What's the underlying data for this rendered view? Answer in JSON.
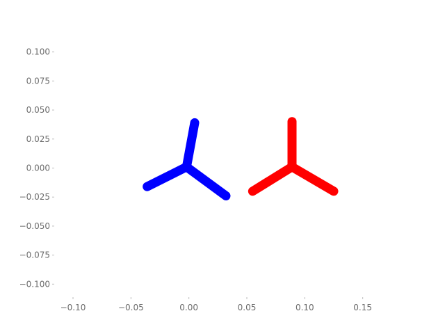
{
  "chart_data": {
    "type": "line",
    "title": "",
    "xlabel": "",
    "ylabel": "",
    "xlim": [
      -0.115,
      0.185
    ],
    "ylim": [
      -0.11,
      0.11
    ],
    "grid": false,
    "x_ticks": [
      -0.1,
      -0.05,
      0.0,
      0.05,
      0.1,
      0.15
    ],
    "x_tick_labels": [
      "−0.10",
      "−0.05",
      "0.00",
      "0.05",
      "0.10",
      "0.15"
    ],
    "y_ticks": [
      0.1,
      0.075,
      0.05,
      0.025,
      0.0,
      -0.025,
      -0.05,
      -0.075,
      -0.1
    ],
    "y_tick_labels": [
      "0.100",
      "0.075",
      "0.050",
      "0.025",
      "0.000",
      "−0.025",
      "−0.050",
      "−0.075",
      "−0.100"
    ],
    "series": [
      {
        "color": "#0000ff",
        "segments": [
          [
            [
              -0.002,
              0.001
            ],
            [
              0.005,
              0.039
            ]
          ],
          [
            [
              -0.002,
              0.001
            ],
            [
              -0.036,
              -0.016
            ]
          ],
          [
            [
              -0.002,
              0.001
            ],
            [
              0.032,
              -0.024
            ]
          ]
        ]
      },
      {
        "color": "#ff0000",
        "segments": [
          [
            [
              0.089,
              0.001
            ],
            [
              0.089,
              0.04
            ]
          ],
          [
            [
              0.089,
              0.001
            ],
            [
              0.055,
              -0.02
            ]
          ],
          [
            [
              0.089,
              0.001
            ],
            [
              0.125,
              -0.02
            ]
          ]
        ]
      }
    ]
  }
}
